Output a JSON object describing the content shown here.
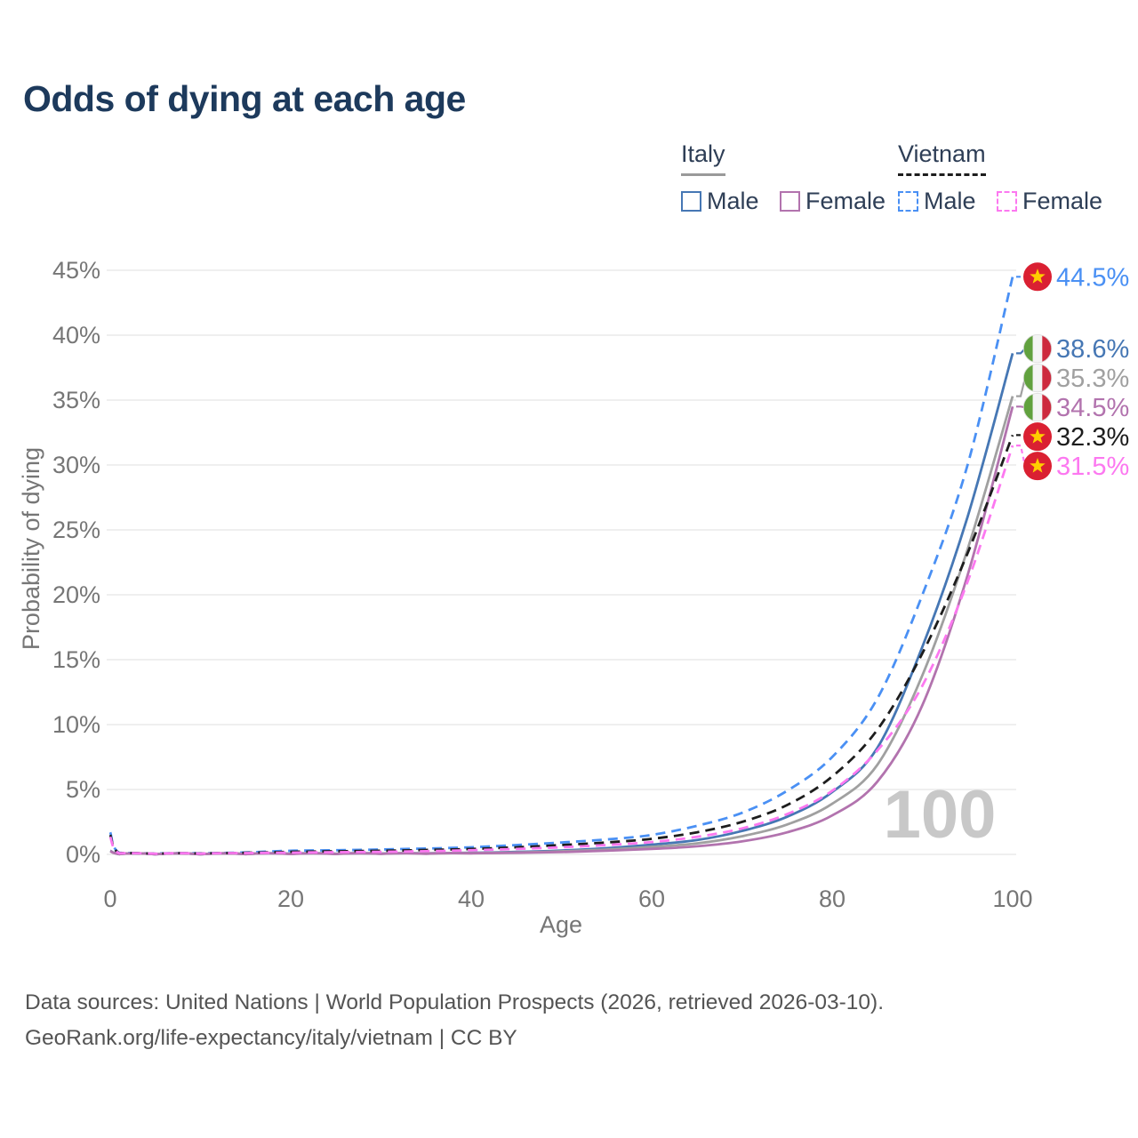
{
  "title": "Odds of dying at each age",
  "legend": {
    "groups": [
      {
        "label": "Italy",
        "line_style": "solid",
        "underline_color": "#9a9a9a",
        "items": [
          {
            "label": "Male",
            "color": "#4677b4"
          },
          {
            "label": "Female",
            "color": "#b273ae"
          }
        ]
      },
      {
        "label": "Vietnam",
        "line_style": "dashed",
        "underline_color": "#1d1d1d",
        "items": [
          {
            "label": "Male",
            "color": "#4a90f4"
          },
          {
            "label": "Female",
            "color": "#fc78f0"
          }
        ]
      }
    ]
  },
  "watermark_age": "100",
  "chart_data": {
    "type": "line",
    "title": "Odds of dying at each age",
    "xlabel": "Age",
    "ylabel": "Probability of dying",
    "xlim": [
      0,
      100
    ],
    "ylim": [
      0,
      45
    ],
    "grid": true,
    "legend_position": "top-right",
    "x_ticks": [
      0,
      20,
      40,
      60,
      80,
      100
    ],
    "y_ticks_percent": [
      0,
      5,
      10,
      15,
      20,
      25,
      30,
      35,
      40,
      45
    ],
    "ages": [
      0,
      1,
      5,
      10,
      15,
      20,
      25,
      30,
      35,
      40,
      45,
      50,
      55,
      60,
      65,
      70,
      75,
      80,
      85,
      90,
      95,
      100
    ],
    "series": [
      {
        "name": "Vietnam Male",
        "country": "Vietnam",
        "sex": "Male",
        "style": "dashed",
        "color": "#4a90f4",
        "flag": "vietnam",
        "end_label": "44.5%",
        "values": [
          1.7,
          0.12,
          0.06,
          0.08,
          0.15,
          0.28,
          0.32,
          0.38,
          0.45,
          0.55,
          0.72,
          0.92,
          1.15,
          1.5,
          2.2,
          3.2,
          4.9,
          7.5,
          12,
          20,
          30,
          44.5
        ]
      },
      {
        "name": "Italy Male",
        "country": "Italy",
        "sex": "Male",
        "style": "solid",
        "color": "#4677b4",
        "flag": "italy",
        "end_label": "38.6%",
        "values": [
          0.28,
          0.02,
          0.01,
          0.01,
          0.03,
          0.05,
          0.05,
          0.06,
          0.08,
          0.12,
          0.19,
          0.3,
          0.48,
          0.75,
          1.1,
          1.8,
          2.9,
          4.8,
          8.2,
          16,
          26,
          38.6
        ]
      },
      {
        "name": "Italy Both sexes",
        "country": "Italy",
        "sex": "Both",
        "style": "solid",
        "color": "#a0a0a0",
        "flag": "italy",
        "end_label": "35.3%",
        "values": [
          0.26,
          0.02,
          0.01,
          0.01,
          0.02,
          0.04,
          0.04,
          0.05,
          0.07,
          0.1,
          0.15,
          0.24,
          0.38,
          0.58,
          0.85,
          1.4,
          2.3,
          3.9,
          6.9,
          13.8,
          23.5,
          35.3
        ]
      },
      {
        "name": "Italy Female",
        "country": "Italy",
        "sex": "Female",
        "style": "solid",
        "color": "#b273ae",
        "flag": "italy",
        "end_label": "34.5%",
        "values": [
          0.24,
          0.02,
          0.01,
          0.01,
          0.02,
          0.03,
          0.03,
          0.04,
          0.05,
          0.08,
          0.12,
          0.18,
          0.28,
          0.42,
          0.62,
          1,
          1.7,
          3,
          5.6,
          11.5,
          21.5,
          34.5
        ]
      },
      {
        "name": "Vietnam Both sexes",
        "country": "Vietnam",
        "sex": "Both",
        "style": "dashed",
        "color": "#1d1d1d",
        "flag": "vietnam",
        "end_label": "32.3%",
        "values": [
          1.5,
          0.1,
          0.05,
          0.07,
          0.12,
          0.2,
          0.24,
          0.28,
          0.34,
          0.42,
          0.55,
          0.72,
          0.92,
          1.2,
          1.7,
          2.5,
          3.8,
          6,
          9.6,
          15.5,
          23.2,
          32.3
        ]
      },
      {
        "name": "Vietnam Female",
        "country": "Vietnam",
        "sex": "Female",
        "style": "dashed",
        "color": "#fc78f0",
        "flag": "vietnam",
        "end_label": "31.5%",
        "values": [
          1.35,
          0.09,
          0.05,
          0.06,
          0.1,
          0.14,
          0.17,
          0.2,
          0.25,
          0.32,
          0.42,
          0.55,
          0.72,
          0.95,
          1.35,
          2,
          3.1,
          4.9,
          8,
          13,
          21,
          31.5
        ]
      }
    ]
  },
  "colors": {
    "grid": "#eaeaea",
    "title_text": "#1d3a5c",
    "axis_text": "#767676",
    "watermark": "#c8c8c8",
    "italy_flag_green": "#61a13e",
    "italy_flag_white": "#f4f4f4",
    "italy_flag_red": "#cd2a3e",
    "vietnam_flag_red": "#da2032",
    "vietnam_flag_star": "#ffce00"
  },
  "footer": {
    "line1": "Data sources: United Nations | World Population Prospects (2026, retrieved 2026-03-10).",
    "line2": "GeoRank.org/life-expectancy/italy/vietnam | CC BY"
  }
}
